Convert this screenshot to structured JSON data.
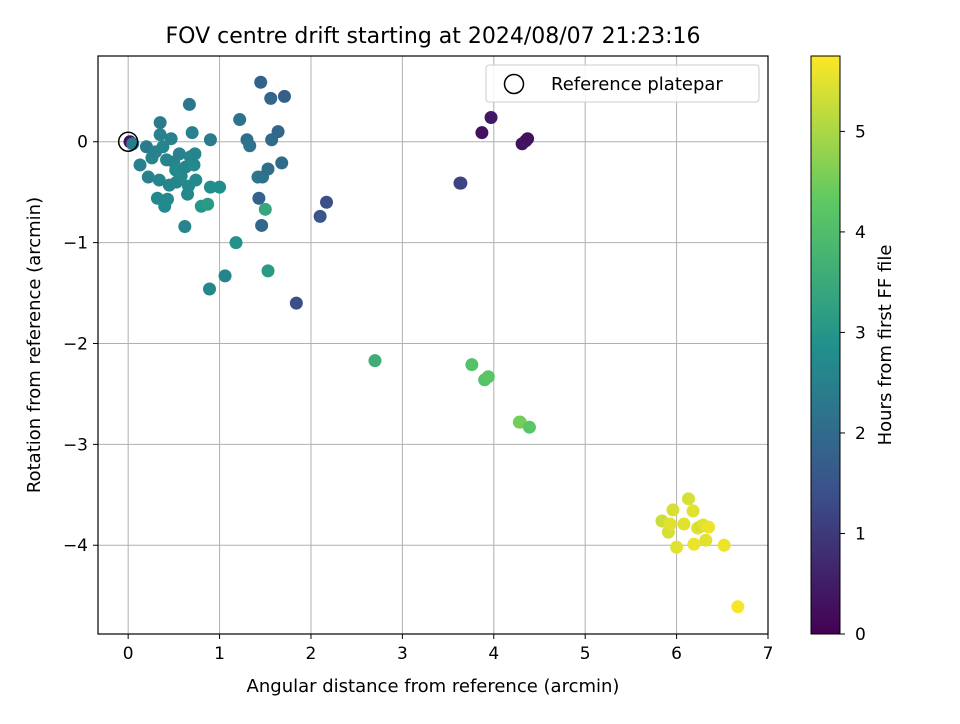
{
  "chart_data": {
    "type": "scatter",
    "title": "FOV centre drift starting at 2024/08/07 21:23:16",
    "xlabel": "Angular distance from reference (arcmin)",
    "ylabel": "Rotation from reference (arcmin)",
    "xlim": [
      -0.33,
      7.0
    ],
    "ylim": [
      -4.88,
      0.85
    ],
    "xticks": [
      0,
      1,
      2,
      3,
      4,
      5,
      6,
      7
    ],
    "yticks": [
      0,
      -1,
      -2,
      -3,
      -4
    ],
    "grid": true,
    "legend": {
      "position": "top-right",
      "label": "Reference platepar"
    },
    "reference_point": {
      "x": 0.0,
      "y": 0.0
    },
    "colorbar": {
      "label": "Hours from first FF file",
      "colormap": "viridis",
      "range": [
        0,
        5.75
      ],
      "ticks": [
        0,
        1,
        2,
        3,
        4,
        5
      ]
    },
    "points": [
      {
        "x": 0.02,
        "y": 0.0,
        "c": 0.3
      },
      {
        "x": 0.05,
        "y": -0.02,
        "c": 2.4
      },
      {
        "x": 0.13,
        "y": -0.23,
        "c": 2.5
      },
      {
        "x": 0.2,
        "y": -0.05,
        "c": 2.4
      },
      {
        "x": 0.22,
        "y": -0.35,
        "c": 2.5
      },
      {
        "x": 0.26,
        "y": -0.16,
        "c": 2.6
      },
      {
        "x": 0.3,
        "y": -0.1,
        "c": 2.5
      },
      {
        "x": 0.32,
        "y": -0.56,
        "c": 2.7
      },
      {
        "x": 0.34,
        "y": -0.38,
        "c": 2.6
      },
      {
        "x": 0.35,
        "y": 0.19,
        "c": 2.4
      },
      {
        "x": 0.35,
        "y": 0.07,
        "c": 2.5
      },
      {
        "x": 0.38,
        "y": -0.05,
        "c": 2.6
      },
      {
        "x": 0.4,
        "y": -0.64,
        "c": 2.7
      },
      {
        "x": 0.42,
        "y": -0.18,
        "c": 2.6
      },
      {
        "x": 0.43,
        "y": -0.57,
        "c": 2.7
      },
      {
        "x": 0.45,
        "y": -0.43,
        "c": 2.6
      },
      {
        "x": 0.47,
        "y": 0.03,
        "c": 2.5
      },
      {
        "x": 0.5,
        "y": -0.2,
        "c": 2.6
      },
      {
        "x": 0.52,
        "y": -0.28,
        "c": 2.7
      },
      {
        "x": 0.53,
        "y": -0.4,
        "c": 2.6
      },
      {
        "x": 0.56,
        "y": -0.12,
        "c": 2.5
      },
      {
        "x": 0.58,
        "y": -0.34,
        "c": 2.7
      },
      {
        "x": 0.62,
        "y": -0.84,
        "c": 2.6
      },
      {
        "x": 0.63,
        "y": -0.25,
        "c": 2.6
      },
      {
        "x": 0.65,
        "y": -0.52,
        "c": 2.7
      },
      {
        "x": 0.66,
        "y": -0.44,
        "c": 2.7
      },
      {
        "x": 0.67,
        "y": 0.37,
        "c": 2.3
      },
      {
        "x": 0.68,
        "y": -0.15,
        "c": 2.6
      },
      {
        "x": 0.7,
        "y": 0.09,
        "c": 2.5
      },
      {
        "x": 0.72,
        "y": -0.23,
        "c": 2.7
      },
      {
        "x": 0.73,
        "y": -0.12,
        "c": 2.6
      },
      {
        "x": 0.74,
        "y": -0.38,
        "c": 2.7
      },
      {
        "x": 0.8,
        "y": -0.64,
        "c": 3.0
      },
      {
        "x": 0.87,
        "y": -0.62,
        "c": 3.1
      },
      {
        "x": 0.89,
        "y": -1.46,
        "c": 2.7
      },
      {
        "x": 0.9,
        "y": -0.45,
        "c": 2.8
      },
      {
        "x": 0.9,
        "y": 0.02,
        "c": 2.4
      },
      {
        "x": 1.0,
        "y": -0.45,
        "c": 2.8
      },
      {
        "x": 1.06,
        "y": -1.33,
        "c": 2.6
      },
      {
        "x": 1.18,
        "y": -1.0,
        "c": 2.9
      },
      {
        "x": 1.22,
        "y": 0.22,
        "c": 2.2
      },
      {
        "x": 1.3,
        "y": 0.02,
        "c": 2.1
      },
      {
        "x": 1.33,
        "y": -0.04,
        "c": 2.2
      },
      {
        "x": 1.42,
        "y": -0.35,
        "c": 2.3
      },
      {
        "x": 1.43,
        "y": -0.56,
        "c": 1.8
      },
      {
        "x": 1.45,
        "y": 0.59,
        "c": 1.8
      },
      {
        "x": 1.46,
        "y": -0.83,
        "c": 1.9
      },
      {
        "x": 1.47,
        "y": -0.35,
        "c": 2.2
      },
      {
        "x": 1.5,
        "y": -0.67,
        "c": 3.4
      },
      {
        "x": 1.53,
        "y": -0.27,
        "c": 2.1
      },
      {
        "x": 1.53,
        "y": -1.28,
        "c": 3.1
      },
      {
        "x": 1.56,
        "y": 0.43,
        "c": 1.9
      },
      {
        "x": 1.57,
        "y": 0.02,
        "c": 2.0
      },
      {
        "x": 1.64,
        "y": 0.1,
        "c": 1.9
      },
      {
        "x": 1.68,
        "y": -0.21,
        "c": 2.0
      },
      {
        "x": 1.71,
        "y": 0.45,
        "c": 1.7
      },
      {
        "x": 1.84,
        "y": -1.6,
        "c": 1.4
      },
      {
        "x": 2.1,
        "y": -0.74,
        "c": 1.5
      },
      {
        "x": 2.17,
        "y": -0.6,
        "c": 1.4
      },
      {
        "x": 2.7,
        "y": -2.17,
        "c": 3.6
      },
      {
        "x": 3.63,
        "y": -0.41,
        "c": 1.3
      },
      {
        "x": 3.64,
        "y": -0.41,
        "c": 1.2
      },
      {
        "x": 3.76,
        "y": -2.21,
        "c": 4.1
      },
      {
        "x": 3.87,
        "y": 0.09,
        "c": 0.3
      },
      {
        "x": 3.9,
        "y": -2.36,
        "c": 4.1
      },
      {
        "x": 3.94,
        "y": -2.33,
        "c": 4.2
      },
      {
        "x": 3.97,
        "y": 0.24,
        "c": 0.4
      },
      {
        "x": 4.28,
        "y": -2.78,
        "c": 4.4
      },
      {
        "x": 4.29,
        "y": -2.78,
        "c": 4.5
      },
      {
        "x": 4.31,
        "y": -0.02,
        "c": 0.3
      },
      {
        "x": 4.35,
        "y": 0.01,
        "c": 0.4
      },
      {
        "x": 4.37,
        "y": 0.03,
        "c": 0.3
      },
      {
        "x": 4.39,
        "y": -2.83,
        "c": 4.2
      },
      {
        "x": 5.84,
        "y": -3.76,
        "c": 5.3
      },
      {
        "x": 5.91,
        "y": -3.87,
        "c": 5.4
      },
      {
        "x": 5.93,
        "y": -3.79,
        "c": 5.5
      },
      {
        "x": 5.96,
        "y": -3.65,
        "c": 5.4
      },
      {
        "x": 6.0,
        "y": -4.02,
        "c": 5.5
      },
      {
        "x": 6.08,
        "y": -3.79,
        "c": 5.5
      },
      {
        "x": 6.13,
        "y": -3.54,
        "c": 5.4
      },
      {
        "x": 6.18,
        "y": -3.66,
        "c": 5.5
      },
      {
        "x": 6.19,
        "y": -3.99,
        "c": 5.6
      },
      {
        "x": 6.23,
        "y": -3.83,
        "c": 5.5
      },
      {
        "x": 6.27,
        "y": -3.81,
        "c": 5.3
      },
      {
        "x": 6.29,
        "y": -3.8,
        "c": 5.5
      },
      {
        "x": 6.32,
        "y": -3.95,
        "c": 5.5
      },
      {
        "x": 6.35,
        "y": -3.82,
        "c": 5.6
      },
      {
        "x": 6.52,
        "y": -4.0,
        "c": 5.6
      },
      {
        "x": 6.67,
        "y": -4.61,
        "c": 5.7
      }
    ]
  }
}
